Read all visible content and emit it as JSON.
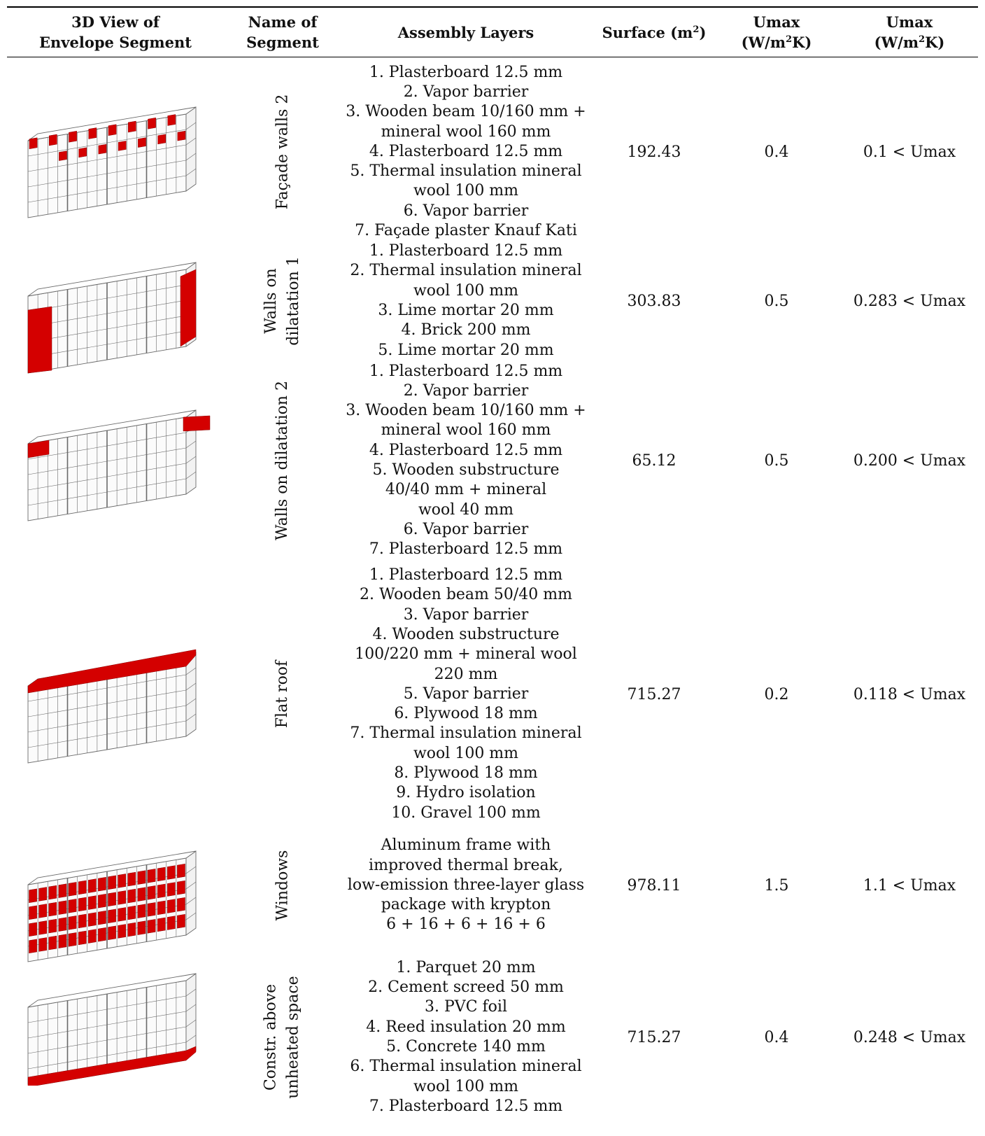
{
  "header": {
    "col1": [
      "3D View of",
      "Envelope Segment"
    ],
    "col2": [
      "Name of",
      "Segment"
    ],
    "col3": "Assembly Layers",
    "col4": {
      "pre": "Surface (m",
      "sup": "2",
      "post": ")"
    },
    "col5": {
      "line1": "Umax",
      "pre": "(W/m",
      "sup": "2",
      "post": "K)"
    },
    "col6": {
      "line1": "Umax",
      "pre": "(W/m",
      "sup": "2",
      "post": "K)"
    }
  },
  "rows": [
    {
      "name": [
        "Façade walls 2"
      ],
      "layers": [
        "1. Plasterboard 12.5 mm",
        "2. Vapor barrier",
        "3. Wooden beam 10/160 mm +",
        "mineral wool 160 mm",
        "4. Plasterboard 12.5 mm",
        "5. Thermal insulation mineral",
        "wool 100 mm",
        "6. Vapor barrier",
        "7. Façade plaster Knauf Kati"
      ],
      "surface": "192.43",
      "umax": "0.4",
      "u": "0.1 < Umax",
      "highlight": "top-windows"
    },
    {
      "name": [
        "Walls on",
        "dilatation 1"
      ],
      "layers": [
        "1. Plasterboard 12.5 mm",
        "2. Thermal insulation mineral",
        "wool 100 mm",
        "3. Lime mortar 20 mm",
        "4. Brick 200 mm",
        "5. Lime mortar 20 mm"
      ],
      "surface": "303.83",
      "umax": "0.5",
      "u": "0.283 < Umax",
      "highlight": "side-walls"
    },
    {
      "name": [
        "Walls on dilatation 2"
      ],
      "layers": [
        "1. Plasterboard 12.5 mm",
        "2. Vapor barrier",
        "3. Wooden beam 10/160 mm +",
        "mineral wool 160 mm",
        "4. Plasterboard 12.5 mm",
        "5. Wooden substructure",
        "40/40 mm + mineral",
        "wool 40 mm",
        "6. Vapor barrier",
        "7. Plasterboard 12.5 mm"
      ],
      "surface": "65.12",
      "umax": "0.5",
      "u": "0.200 < Umax",
      "highlight": "top-corners"
    },
    {
      "name": [
        "Flat roof"
      ],
      "layers": [
        "1. Plasterboard 12.5 mm",
        "2. Wooden beam 50/40 mm",
        "3. Vapor barrier",
        "4. Wooden substructure",
        "100/220 mm + mineral wool",
        "220 mm",
        "5. Vapor barrier",
        "6. Plywood 18 mm",
        "7. Thermal insulation mineral",
        "wool 100 mm",
        "8. Plywood 18 mm",
        "9. Hydro isolation",
        "10. Gravel 100 mm"
      ],
      "surface": "715.27",
      "umax": "0.2",
      "u": "0.118 < Umax",
      "highlight": "roof"
    },
    {
      "name": [
        "Windows"
      ],
      "layers": [
        "Aluminum frame with",
        "improved thermal break,",
        "low-emission three-layer glass",
        "package with krypton",
        "6 + 16 + 6 + 16 + 6"
      ],
      "surface": "978.11",
      "umax": "1.5",
      "u": "1.1 < Umax",
      "highlight": "windows"
    },
    {
      "name": [
        "Constr. above",
        "unheated space"
      ],
      "layers": [
        "1. Parquet 20 mm",
        "2. Cement screed 50 mm",
        "3. PVC foil",
        "4. Reed insulation 20 mm",
        "5. Concrete 140 mm",
        "6. Thermal insulation mineral",
        "wool 100 mm",
        "7. Plasterboard 12.5 mm"
      ],
      "surface": "715.27",
      "umax": "0.4",
      "u": "0.248 < Umax",
      "highlight": "floor"
    }
  ],
  "colors": {
    "highlight": "#d40000",
    "wireframe": "#6a6a6a"
  }
}
